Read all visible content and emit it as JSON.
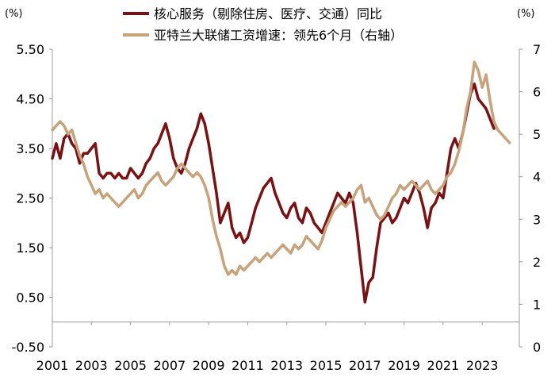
{
  "chart_data": {
    "type": "line",
    "left_axis_unit": "(%)",
    "right_axis_unit": "(%)",
    "left_axis_ticks": [
      "5.50",
      "4.50",
      "3.50",
      "2.50",
      "1.50",
      "0.50",
      "-0.50"
    ],
    "right_axis_ticks": [
      "7",
      "6",
      "5",
      "4",
      "3",
      "2",
      "1",
      "0"
    ],
    "x_tick_labels": [
      "2001",
      "2003",
      "2005",
      "2007",
      "2009",
      "2011",
      "2013",
      "2015",
      "2017",
      "2019",
      "2021",
      "2023"
    ],
    "ylim_left": [
      -0.5,
      5.5
    ],
    "ylim_right": [
      0,
      7
    ],
    "xlim": [
      2001.0,
      2024.9
    ],
    "legend_position": "top-center",
    "grid": false,
    "series": [
      {
        "name": "核心服务（剔除住房、医疗、交通）同比",
        "axis": "left",
        "color": "#7B1113",
        "x": [
          2001.0,
          2001.2,
          2001.4,
          2001.6,
          2001.8,
          2002.0,
          2002.2,
          2002.4,
          2002.6,
          2002.8,
          2003.0,
          2003.2,
          2003.4,
          2003.6,
          2003.8,
          2004.0,
          2004.2,
          2004.4,
          2004.6,
          2004.8,
          2005.0,
          2005.2,
          2005.4,
          2005.6,
          2005.8,
          2006.0,
          2006.2,
          2006.4,
          2006.6,
          2006.8,
          2007.0,
          2007.2,
          2007.4,
          2007.6,
          2007.8,
          2008.0,
          2008.2,
          2008.4,
          2008.6,
          2008.8,
          2009.0,
          2009.2,
          2009.4,
          2009.6,
          2009.8,
          2010.0,
          2010.2,
          2010.4,
          2010.6,
          2010.8,
          2011.0,
          2011.2,
          2011.4,
          2011.6,
          2011.8,
          2012.0,
          2012.2,
          2012.4,
          2012.6,
          2012.8,
          2013.0,
          2013.2,
          2013.4,
          2013.6,
          2013.8,
          2014.0,
          2014.2,
          2014.4,
          2014.6,
          2014.8,
          2015.0,
          2015.2,
          2015.4,
          2015.6,
          2015.8,
          2016.0,
          2016.2,
          2016.4,
          2016.6,
          2016.8,
          2017.0,
          2017.2,
          2017.4,
          2017.6,
          2017.8,
          2018.0,
          2018.2,
          2018.4,
          2018.6,
          2018.8,
          2019.0,
          2019.2,
          2019.4,
          2019.6,
          2019.8,
          2020.0,
          2020.2,
          2020.4,
          2020.6,
          2020.8,
          2021.0,
          2021.2,
          2021.4,
          2021.6,
          2021.8,
          2022.0,
          2022.2,
          2022.4,
          2022.6,
          2022.8,
          2023.0,
          2023.2,
          2023.4,
          2023.6
        ],
        "values": [
          3.3,
          3.6,
          3.3,
          3.7,
          3.8,
          3.6,
          3.5,
          3.2,
          3.4,
          3.4,
          3.5,
          3.6,
          3.0,
          2.9,
          3.0,
          3.0,
          2.9,
          3.0,
          2.9,
          2.9,
          3.1,
          3.0,
          2.9,
          3.0,
          3.2,
          3.3,
          3.5,
          3.6,
          3.8,
          4.0,
          3.7,
          3.3,
          3.1,
          3.0,
          3.2,
          3.5,
          3.7,
          3.9,
          4.2,
          4.0,
          3.6,
          3.1,
          2.6,
          2.0,
          2.2,
          2.4,
          1.9,
          1.7,
          1.8,
          1.6,
          1.7,
          2.0,
          2.3,
          2.5,
          2.7,
          2.8,
          2.9,
          2.6,
          2.4,
          2.2,
          2.1,
          2.3,
          2.4,
          2.1,
          2.0,
          2.3,
          2.2,
          2.0,
          1.9,
          1.8,
          2.0,
          2.2,
          2.4,
          2.6,
          2.5,
          2.4,
          2.6,
          2.4,
          1.8,
          1.1,
          0.4,
          0.8,
          0.9,
          1.5,
          2.0,
          2.1,
          2.2,
          2.0,
          2.1,
          2.3,
          2.5,
          2.4,
          2.6,
          2.8,
          2.6,
          2.3,
          1.9,
          2.3,
          2.4,
          2.6,
          2.5,
          3.0,
          3.5,
          3.7,
          3.5,
          3.8,
          4.2,
          4.6,
          4.8,
          4.5,
          4.4,
          4.3,
          4.1,
          3.9
        ]
      },
      {
        "name": "亚特兰大联储工资增速：领先6个月（右轴）",
        "axis": "right",
        "color": "#C7A27A",
        "x": [
          2001.0,
          2001.2,
          2001.4,
          2001.6,
          2001.8,
          2002.0,
          2002.2,
          2002.4,
          2002.6,
          2002.8,
          2003.0,
          2003.2,
          2003.4,
          2003.6,
          2003.8,
          2004.0,
          2004.2,
          2004.4,
          2004.6,
          2004.8,
          2005.0,
          2005.2,
          2005.4,
          2005.6,
          2005.8,
          2006.0,
          2006.2,
          2006.4,
          2006.6,
          2006.8,
          2007.0,
          2007.2,
          2007.4,
          2007.6,
          2007.8,
          2008.0,
          2008.2,
          2008.4,
          2008.6,
          2008.8,
          2009.0,
          2009.2,
          2009.4,
          2009.6,
          2009.8,
          2010.0,
          2010.2,
          2010.4,
          2010.6,
          2010.8,
          2011.0,
          2011.2,
          2011.4,
          2011.6,
          2011.8,
          2012.0,
          2012.2,
          2012.4,
          2012.6,
          2012.8,
          2013.0,
          2013.2,
          2013.4,
          2013.6,
          2013.8,
          2014.0,
          2014.2,
          2014.4,
          2014.6,
          2014.8,
          2015.0,
          2015.2,
          2015.4,
          2015.6,
          2015.8,
          2016.0,
          2016.2,
          2016.4,
          2016.6,
          2016.8,
          2017.0,
          2017.2,
          2017.4,
          2017.6,
          2017.8,
          2018.0,
          2018.2,
          2018.4,
          2018.6,
          2018.8,
          2019.0,
          2019.2,
          2019.4,
          2019.6,
          2019.8,
          2020.0,
          2020.2,
          2020.4,
          2020.6,
          2020.8,
          2021.0,
          2021.2,
          2021.4,
          2021.6,
          2021.8,
          2022.0,
          2022.2,
          2022.4,
          2022.6,
          2022.8,
          2023.0,
          2023.2,
          2023.4,
          2023.6,
          2023.8,
          2024.0,
          2024.2,
          2024.4
        ],
        "values": [
          5.1,
          5.2,
          5.3,
          5.2,
          5.0,
          5.1,
          4.8,
          4.5,
          4.3,
          4.0,
          3.8,
          3.6,
          3.7,
          3.5,
          3.6,
          3.5,
          3.4,
          3.3,
          3.4,
          3.5,
          3.6,
          3.7,
          3.5,
          3.6,
          3.8,
          3.9,
          4.0,
          4.1,
          3.9,
          3.8,
          3.9,
          4.0,
          4.2,
          4.3,
          4.2,
          4.1,
          4.0,
          4.1,
          4.0,
          3.8,
          3.5,
          3.0,
          2.6,
          2.3,
          1.9,
          1.7,
          1.8,
          1.7,
          1.9,
          1.8,
          1.9,
          2.0,
          2.1,
          2.0,
          2.1,
          2.2,
          2.1,
          2.2,
          2.3,
          2.4,
          2.3,
          2.2,
          2.4,
          2.3,
          2.4,
          2.6,
          2.5,
          2.4,
          2.3,
          2.5,
          2.8,
          3.0,
          3.2,
          3.3,
          3.4,
          3.3,
          3.4,
          3.5,
          3.7,
          3.8,
          3.4,
          3.5,
          3.3,
          3.1,
          3.0,
          3.1,
          3.3,
          3.5,
          3.6,
          3.8,
          3.7,
          3.8,
          3.9,
          3.8,
          3.7,
          3.8,
          3.9,
          3.7,
          3.6,
          3.7,
          3.8,
          4.0,
          4.1,
          4.3,
          4.6,
          5.0,
          5.6,
          6.0,
          6.7,
          6.5,
          6.1,
          6.4,
          5.8,
          5.3,
          5.1,
          5.0,
          4.9,
          4.8
        ]
      }
    ]
  }
}
